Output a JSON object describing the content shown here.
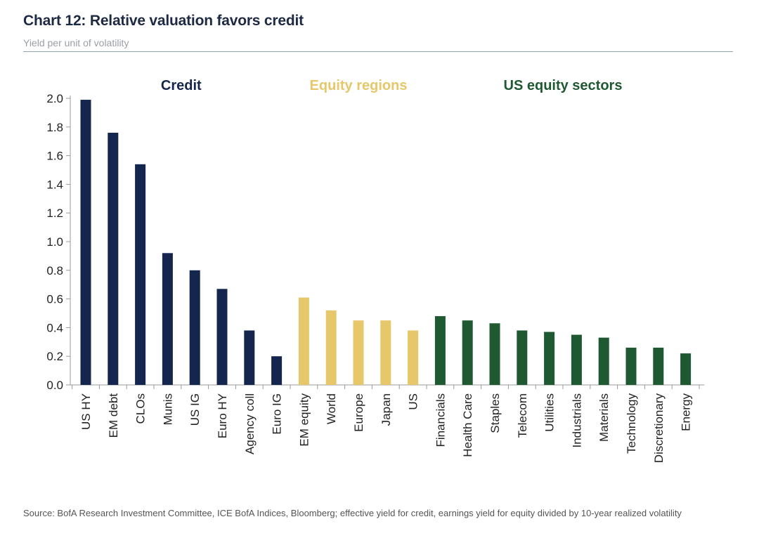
{
  "title": "Chart 12: Relative valuation favors credit",
  "subtitle": "Yield per unit of volatility",
  "source": "Source: BofA Research Investment Committee, ICE BofA Indices, Bloomberg; effective yield for credit, earnings yield for equity divided by 10-year realized volatility",
  "colors": {
    "credit": "#14264d",
    "equity_regions": "#e6c76a",
    "sectors": "#1f5932",
    "axis": "#999999"
  },
  "chart_data": {
    "type": "bar",
    "title": "Chart 12: Relative valuation favors credit",
    "subtitle": "Yield per unit of volatility",
    "xlabel": "",
    "ylabel": "",
    "ylim": [
      0,
      2.0
    ],
    "yticks": [
      "0.0",
      "0.2",
      "0.4",
      "0.6",
      "0.8",
      "1.0",
      "1.2",
      "1.4",
      "1.6",
      "1.8",
      "2.0"
    ],
    "grid": false,
    "groups": [
      {
        "name": "Credit",
        "color_key": "credit",
        "categories": [
          "US HY",
          "EM debt",
          "CLOs",
          "Munis",
          "US IG",
          "Euro HY",
          "Agency coll",
          "Euro IG"
        ],
        "values": [
          1.99,
          1.76,
          1.54,
          0.92,
          0.8,
          0.67,
          0.38,
          0.2
        ]
      },
      {
        "name": "Equity regions",
        "color_key": "equity_regions",
        "categories": [
          "EM equity",
          "World",
          "Europe",
          "Japan",
          "US"
        ],
        "values": [
          0.61,
          0.52,
          0.45,
          0.45,
          0.38
        ]
      },
      {
        "name": "US equity sectors",
        "color_key": "sectors",
        "categories": [
          "Financials",
          "Health Care",
          "Staples",
          "Telecom",
          "Utilities",
          "Industrials",
          "Materials",
          "Technology",
          "Discretionary",
          "Energy"
        ],
        "values": [
          0.48,
          0.45,
          0.43,
          0.38,
          0.37,
          0.35,
          0.33,
          0.26,
          0.26,
          0.22
        ]
      }
    ]
  }
}
